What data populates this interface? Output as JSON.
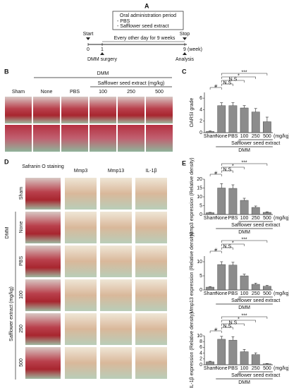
{
  "panel_a": {
    "label": "A",
    "box_title": "Oral administration period",
    "box_items": [
      "- PBS",
      "- Safflower seed extract"
    ],
    "start": "Start",
    "stop": "Stop",
    "week_ticks": [
      "0",
      "1",
      "9"
    ],
    "week_unit": "(week)",
    "span_label": "Every other day for 9 weeks",
    "surgery": "DMM surgery",
    "analysis": "Analysis"
  },
  "panel_b": {
    "label": "B",
    "group": "DMM",
    "columns": [
      "Sham",
      "None",
      "PBS",
      "100",
      "250",
      "500"
    ],
    "extract_label": "Safflower seed  extract (mg/kg)"
  },
  "panel_c_label": "C",
  "panel_d": {
    "label": "D",
    "columns": [
      "Safranin O staining",
      "Mmp3",
      "Mmp13",
      "IL-1β"
    ],
    "rows": [
      "Sham",
      "None",
      "PBS",
      "100",
      "250",
      "500"
    ],
    "group": "DMM",
    "extract_label": "Safflower extract (mg/kg)"
  },
  "panel_e_label": "E",
  "chart_data": [
    {
      "type": "bar",
      "ylabel": "OARSI grade",
      "categories": [
        "Sham",
        "None",
        "PBS",
        "100",
        "250",
        "500"
      ],
      "values": [
        0.2,
        4.7,
        4.7,
        4.3,
        3.6,
        1.9
      ],
      "errors": [
        0.1,
        0.5,
        0.5,
        0.4,
        0.6,
        0.8
      ],
      "color": "#8c8c8c",
      "ylim": [
        0,
        7
      ],
      "yticks": [
        0,
        2,
        4,
        6
      ],
      "unit_label": "(mg/kg)",
      "group_labels": [
        "Safflower seed extract",
        "DMM"
      ],
      "annotations": [
        "#",
        "N.S",
        "N.S",
        "*",
        "***"
      ]
    },
    {
      "type": "bar",
      "ylabel": "Mmp3 expression (Relative density)",
      "categories": [
        "Sham",
        "None",
        "PBS",
        "100",
        "250",
        "500"
      ],
      "values": [
        1,
        15,
        14.8,
        8,
        4,
        1.2
      ],
      "errors": [
        0.2,
        2.5,
        2,
        1.2,
        0.8,
        0.3
      ],
      "color": "#8c8c8c",
      "ylim": [
        0,
        20
      ],
      "yticks": [
        0,
        5,
        10,
        15,
        20
      ],
      "unit_label": "(mg/kg)",
      "group_labels": [
        "Safflower seed extract",
        "DMM"
      ],
      "annotations": [
        "#",
        "N.S",
        "*",
        "***"
      ]
    },
    {
      "type": "bar",
      "ylabel": "Mmp13 expression (Relative density)",
      "categories": [
        "Sham",
        "None",
        "PBS",
        "100",
        "250",
        "500"
      ],
      "values": [
        1,
        9,
        8.8,
        5,
        2,
        1.3
      ],
      "errors": [
        0.2,
        1,
        1,
        0.6,
        0.4,
        0.3
      ],
      "color": "#8c8c8c",
      "ylim": [
        0,
        12
      ],
      "yticks": [
        0,
        5,
        10
      ],
      "unit_label": "(mg/kg)",
      "group_labels": [
        "Safflower seed extract",
        "DMM"
      ],
      "annotations": [
        "#",
        "N.S",
        "*",
        "***"
      ]
    },
    {
      "type": "bar",
      "ylabel": "IL-1β expression (Relative density)",
      "categories": [
        "Sham",
        "None",
        "PBS",
        "100",
        "250",
        "500"
      ],
      "values": [
        1,
        8.8,
        8.5,
        4.5,
        3.5,
        0.3
      ],
      "errors": [
        0.2,
        1,
        1.2,
        0.8,
        0.6,
        0.1
      ],
      "color": "#8c8c8c",
      "ylim": [
        0,
        10
      ],
      "yticks": [
        0,
        2,
        4,
        6,
        8,
        10
      ],
      "unit_label": "(mg/kg)",
      "group_labels": [
        "Safflower seed extract",
        "DMM"
      ],
      "annotations": [
        "#",
        "N.S",
        "N.S",
        "*",
        "***"
      ]
    }
  ]
}
